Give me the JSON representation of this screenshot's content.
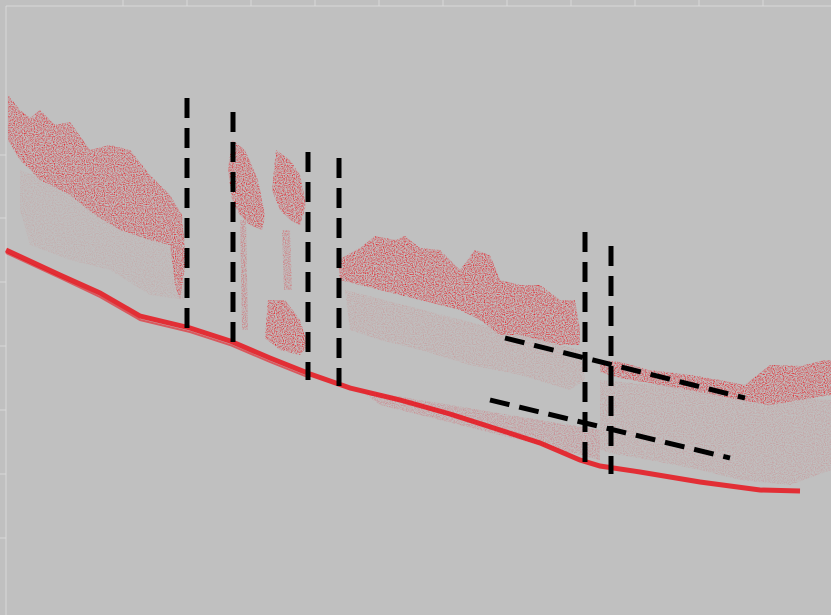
{
  "figure": {
    "background_color": "#C0C0C0",
    "border_color": "#D9D9D9",
    "point_color": "#E8141C",
    "marker_color": "#000000",
    "gridlines": true
  }
}
